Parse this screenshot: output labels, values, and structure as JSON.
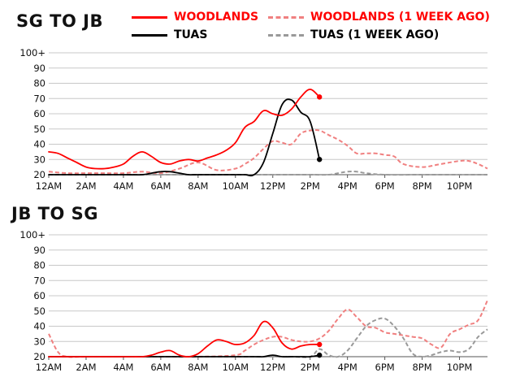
{
  "legend": [
    {
      "label": "WOODLANDS",
      "color": "#ff0000",
      "style": "solid"
    },
    {
      "label": "WOODLANDS (1 WEEK AGO)",
      "color": "#f08080",
      "style": "dashed"
    },
    {
      "label": "TUAS",
      "color": "#000000",
      "style": "solid"
    },
    {
      "label": "TUAS (1 WEEK AGO)",
      "color": "#999999",
      "style": "dashed"
    }
  ],
  "chart_data": [
    {
      "type": "line",
      "title": "SG TO JB",
      "xlabel": "",
      "ylabel": "",
      "xlim": [
        0,
        23.5
      ],
      "ylim": [
        20,
        100
      ],
      "x_ticks": [
        0,
        2,
        4,
        6,
        8,
        10,
        12,
        14,
        16,
        18,
        20,
        22
      ],
      "x_tick_labels": [
        "12AM",
        "2AM",
        "4AM",
        "6AM",
        "8AM",
        "10AM",
        "12PM",
        "2PM",
        "4PM",
        "6PM",
        "8PM",
        "10PM"
      ],
      "y_ticks": [
        20,
        30,
        40,
        50,
        60,
        70,
        80,
        90,
        100
      ],
      "y_tick_labels": [
        "20",
        "30",
        "40",
        "50",
        "60",
        "70",
        "80",
        "90",
        "100+"
      ],
      "series": [
        {
          "name": "WOODLANDS",
          "color": "#ff0000",
          "style": "solid",
          "end_marker": true,
          "x": [
            0,
            0.5,
            1,
            1.5,
            2,
            2.5,
            3,
            3.5,
            4,
            4.5,
            5,
            5.5,
            6,
            6.5,
            7,
            7.5,
            8,
            8.5,
            9,
            9.5,
            10,
            10.5,
            11,
            11.5,
            12,
            12.5,
            13,
            13.5,
            14,
            14.5
          ],
          "values": [
            35,
            34,
            31,
            28,
            25,
            24,
            24,
            25,
            27,
            32,
            35,
            32,
            28,
            27,
            29,
            30,
            29,
            31,
            33,
            36,
            41,
            51,
            55,
            62,
            60,
            59,
            63,
            71,
            76,
            71
          ]
        },
        {
          "name": "TUAS",
          "color": "#000000",
          "style": "solid",
          "end_marker": true,
          "x": [
            0,
            1,
            2,
            3,
            4,
            5,
            5.5,
            6,
            6.5,
            7,
            7.5,
            8,
            8.5,
            9,
            9.5,
            10,
            10.5,
            11,
            11.5,
            12,
            12.5,
            13,
            13.5,
            14,
            14.5
          ],
          "values": [
            20,
            20,
            20,
            20,
            20,
            20,
            21,
            22,
            22,
            21,
            20,
            20,
            20,
            20,
            20,
            20,
            20,
            20,
            28,
            47,
            66,
            69,
            61,
            55,
            30
          ]
        },
        {
          "name": "WOODLANDS (1 WEEK AGO)",
          "color": "#f08080",
          "style": "dashed",
          "x": [
            0,
            1,
            2,
            3,
            4,
            5,
            6,
            7,
            8,
            9,
            10,
            10.5,
            11,
            11.5,
            12,
            12.5,
            13,
            13.5,
            14,
            14.5,
            15,
            15.5,
            16,
            16.5,
            17,
            17.5,
            18,
            18.5,
            19,
            20,
            21,
            22,
            22.5,
            23,
            23.5
          ],
          "values": [
            22,
            21,
            21,
            21,
            21,
            22,
            21,
            24,
            28,
            23,
            24,
            27,
            31,
            37,
            42,
            41,
            40,
            47,
            49,
            49,
            46,
            43,
            39,
            34,
            34,
            34,
            33,
            32,
            27,
            25,
            27,
            29,
            29,
            27,
            24
          ]
        },
        {
          "name": "TUAS (1 WEEK AGO)",
          "color": "#999999",
          "style": "dashed",
          "x": [
            0,
            2,
            4,
            6,
            8,
            10,
            12,
            14,
            15,
            15.5,
            16,
            16.5,
            17,
            18,
            20,
            22,
            23.5
          ],
          "values": [
            20,
            20,
            20,
            20,
            20,
            20,
            20,
            20,
            20,
            21,
            22,
            22,
            21,
            20,
            20,
            20,
            20
          ]
        }
      ]
    },
    {
      "type": "line",
      "title": "JB TO SG",
      "xlabel": "",
      "ylabel": "",
      "xlim": [
        0,
        23.5
      ],
      "ylim": [
        20,
        100
      ],
      "x_ticks": [
        0,
        2,
        4,
        6,
        8,
        10,
        12,
        14,
        16,
        18,
        20,
        22
      ],
      "x_tick_labels": [
        "12AM",
        "2AM",
        "4AM",
        "6AM",
        "8AM",
        "10AM",
        "12PM",
        "2PM",
        "4PM",
        "6PM",
        "8PM",
        "10PM"
      ],
      "y_ticks": [
        20,
        30,
        40,
        50,
        60,
        70,
        80,
        90,
        100
      ],
      "y_tick_labels": [
        "20",
        "30",
        "40",
        "50",
        "60",
        "70",
        "80",
        "90",
        "100+"
      ],
      "series": [
        {
          "name": "WOODLANDS",
          "color": "#ff0000",
          "style": "solid",
          "end_marker": true,
          "x": [
            0,
            1,
            2,
            3,
            4,
            4.5,
            5,
            5.5,
            6,
            6.5,
            7,
            7.5,
            8,
            8.5,
            9,
            9.5,
            10,
            10.5,
            11,
            11.5,
            12,
            12.5,
            13,
            13.5,
            14,
            14.5
          ],
          "values": [
            20,
            20,
            20,
            20,
            20,
            20,
            20,
            21,
            23,
            24,
            21,
            20,
            22,
            27,
            31,
            30,
            28,
            29,
            34,
            43,
            39,
            29,
            25,
            27,
            28,
            28
          ]
        },
        {
          "name": "TUAS",
          "color": "#000000",
          "style": "solid",
          "end_marker": true,
          "x": [
            0,
            2,
            4,
            6,
            8,
            10,
            11,
            11.5,
            12,
            12.5,
            13,
            13.5,
            14,
            14.5
          ],
          "values": [
            20,
            20,
            20,
            20,
            20,
            20,
            20,
            20,
            21,
            20,
            20,
            20,
            20,
            21
          ]
        },
        {
          "name": "WOODLANDS (1 WEEK AGO)",
          "color": "#f08080",
          "style": "dashed",
          "x": [
            0,
            0.5,
            1,
            2,
            4,
            6,
            8,
            10,
            10.5,
            11,
            11.5,
            12,
            12.5,
            13,
            13.5,
            14,
            14.5,
            15,
            15.5,
            16,
            16.5,
            17,
            17.5,
            18,
            18.5,
            19,
            19.5,
            20,
            20.5,
            21,
            21.5,
            22,
            22.5,
            23,
            23.5
          ],
          "values": [
            35,
            23,
            20,
            20,
            20,
            20,
            20,
            21,
            24,
            28,
            31,
            33,
            33,
            31,
            30,
            30,
            32,
            37,
            45,
            51,
            46,
            40,
            39,
            36,
            35,
            34,
            33,
            32,
            28,
            26,
            35,
            38,
            41,
            44,
            57
          ]
        },
        {
          "name": "TUAS (1 WEEK AGO)",
          "color": "#999999",
          "style": "dashed",
          "x": [
            0,
            2,
            4,
            6,
            8,
            10,
            12,
            13,
            14,
            14.5,
            15,
            15.5,
            16,
            16.5,
            17,
            17.5,
            18,
            18.5,
            19,
            19.5,
            20,
            20.5,
            21,
            21.5,
            22,
            22.5,
            23,
            23.5
          ],
          "values": [
            20,
            20,
            20,
            20,
            20,
            20,
            20,
            20,
            20,
            25,
            21,
            20,
            24,
            32,
            40,
            44,
            45,
            40,
            32,
            22,
            20,
            21,
            23,
            24,
            23,
            25,
            33,
            38
          ]
        }
      ]
    }
  ]
}
